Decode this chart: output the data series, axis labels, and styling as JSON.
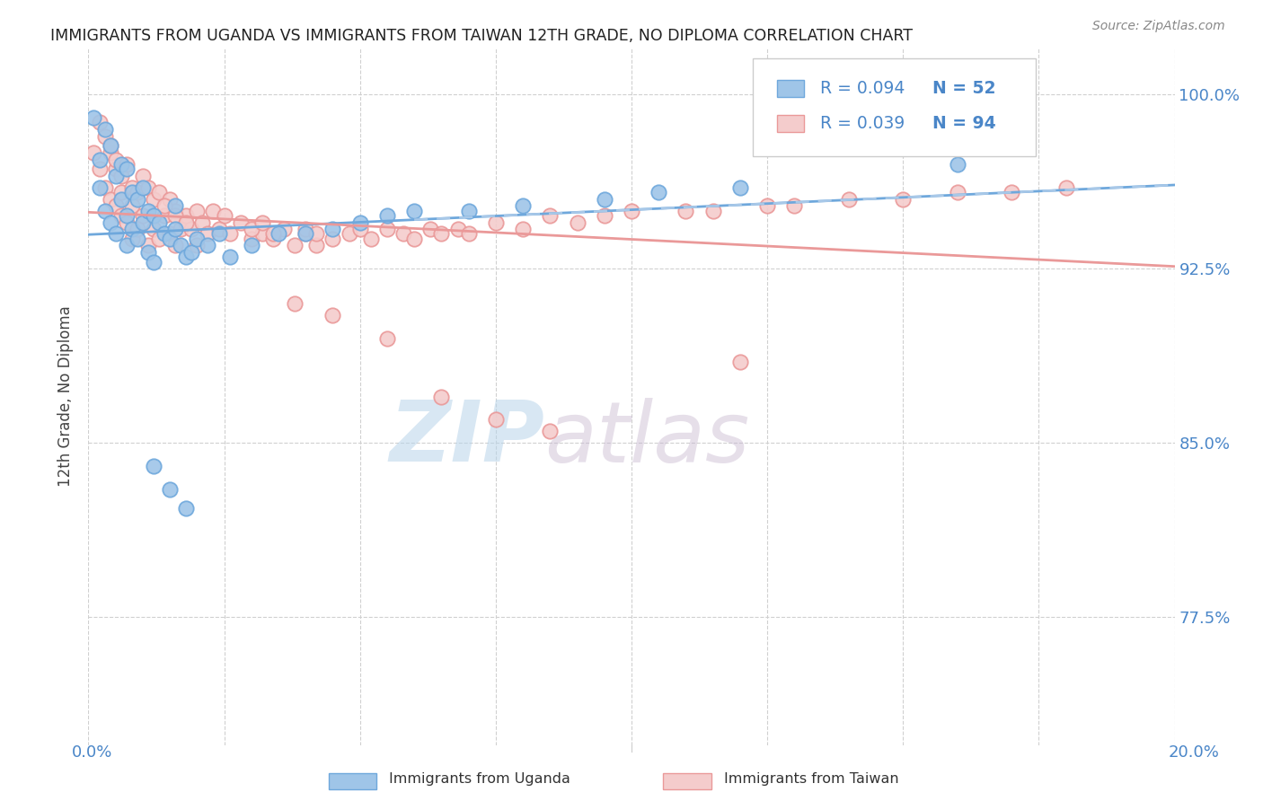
{
  "title": "IMMIGRANTS FROM UGANDA VS IMMIGRANTS FROM TAIWAN 12TH GRADE, NO DIPLOMA CORRELATION CHART",
  "source": "Source: ZipAtlas.com",
  "ylabel": "12th Grade, No Diploma",
  "xlim": [
    0.0,
    0.2
  ],
  "ylim": [
    0.72,
    1.02
  ],
  "yticks": [
    0.775,
    0.85,
    0.925,
    1.0
  ],
  "ytick_labels": [
    "77.5%",
    "85.0%",
    "92.5%",
    "100.0%"
  ],
  "legend_R_uganda": "R = 0.094",
  "legend_N_uganda": "N = 52",
  "legend_R_taiwan": "R = 0.039",
  "legend_N_taiwan": "N = 94",
  "color_uganda": "#6fa8dc",
  "color_taiwan": "#ea9999",
  "color_uganda_fill": "#9fc5e8",
  "color_taiwan_fill": "#f4cccc",
  "watermark_zip": "ZIP",
  "watermark_atlas": "atlas",
  "bg_color": "#ffffff",
  "grid_color": "#d0d0d0",
  "grid_style": "--",
  "title_color": "#222222",
  "axis_color": "#4a86c8",
  "source_color": "#888888"
}
